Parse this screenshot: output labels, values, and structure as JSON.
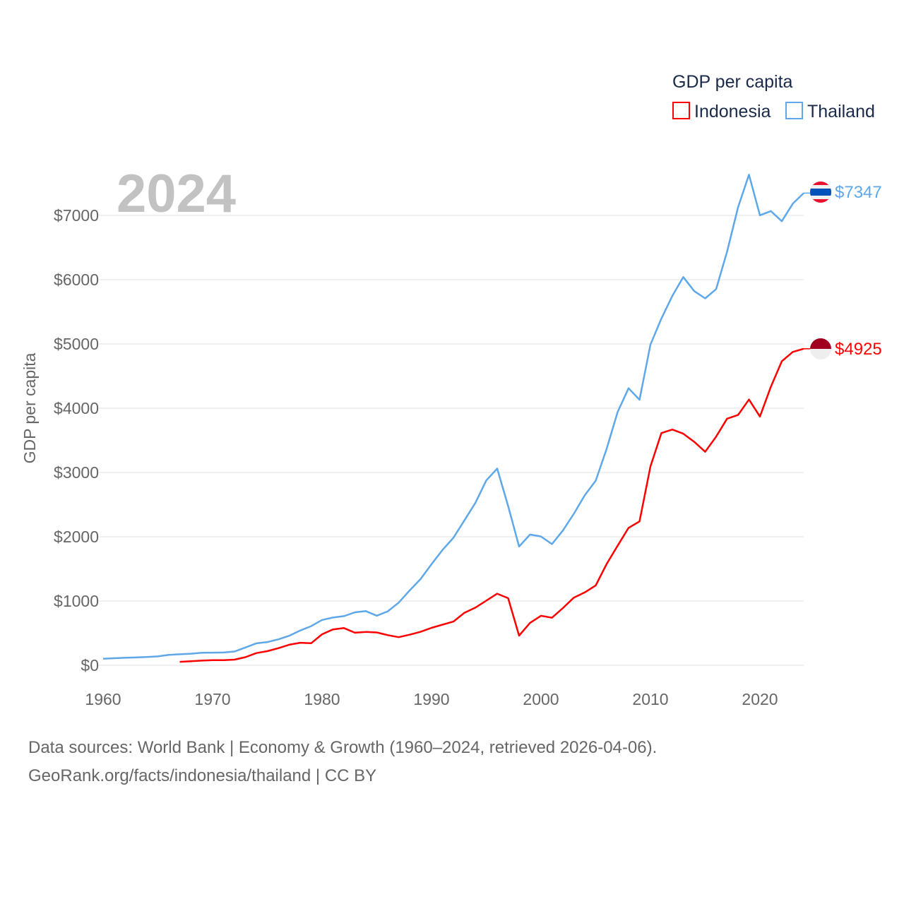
{
  "chart_data": {
    "type": "line",
    "title": "GDP per capita",
    "year_label": "2024",
    "xlabel": "",
    "ylabel": "GDP per capita",
    "xlim": [
      1960,
      2024
    ],
    "ylim": [
      0,
      7700
    ],
    "x_ticks": [
      1960,
      1970,
      1980,
      1990,
      2000,
      2010,
      2020
    ],
    "x_tick_labels": [
      "1960",
      "1970",
      "1980",
      "1990",
      "2000",
      "2010",
      "2020"
    ],
    "y_ticks": [
      0,
      1000,
      2000,
      3000,
      4000,
      5000,
      6000,
      7000
    ],
    "y_tick_labels": [
      "$0",
      "$1000",
      "$2000",
      "$3000",
      "$4000",
      "$5000",
      "$6000",
      "$7000"
    ],
    "grid": true,
    "legend_placement": "top-right",
    "series": [
      {
        "name": "Indonesia",
        "color": "#ff0000",
        "end_label": "$4925",
        "start_year": 1967,
        "values": [
          54,
          64,
          72,
          79,
          79,
          88,
          126,
          190,
          220,
          266,
          320,
          350,
          343,
          482,
          558,
          579,
          507,
          520,
          511,
          469,
          437,
          476,
          521,
          582,
          632,
          680,
          817,
          897,
          1005,
          1114,
          1044,
          461,
          660,
          770,
          740,
          890,
          1053,
          1134,
          1243,
          1577,
          1860,
          2138,
          2238,
          3094,
          3613,
          3668,
          3603,
          3477,
          3322,
          3558,
          3837,
          3894,
          4135,
          3870,
          4334,
          4731,
          4876,
          4925
        ]
      },
      {
        "name": "Thailand",
        "color": "#5ea8ea",
        "end_label": "$7347",
        "start_year": 1960,
        "values": [
          101,
          110,
          117,
          122,
          129,
          138,
          163,
          171,
          180,
          194,
          197,
          199,
          214,
          277,
          342,
          361,
          403,
          459,
          541,
          609,
          706,
          743,
          765,
          824,
          843,
          771,
          840,
          975,
          1164,
          1342,
          1573,
          1795,
          1985,
          2254,
          2525,
          2876,
          3060,
          2477,
          1848,
          2034,
          2004,
          1886,
          2097,
          2357,
          2646,
          2872,
          3369,
          3941,
          4311,
          4132,
          4991,
          5396,
          5748,
          6041,
          5822,
          5709,
          5854,
          6436,
          7125,
          7634,
          7002,
          7067,
          6910,
          7182,
          7347
        ]
      }
    ]
  },
  "footer": {
    "line1": "Data sources: World Bank | Economy & Growth (1960–2024, retrieved 2026-04-06).",
    "line2": "GeoRank.org/facts/indonesia/thailand | CC BY"
  }
}
